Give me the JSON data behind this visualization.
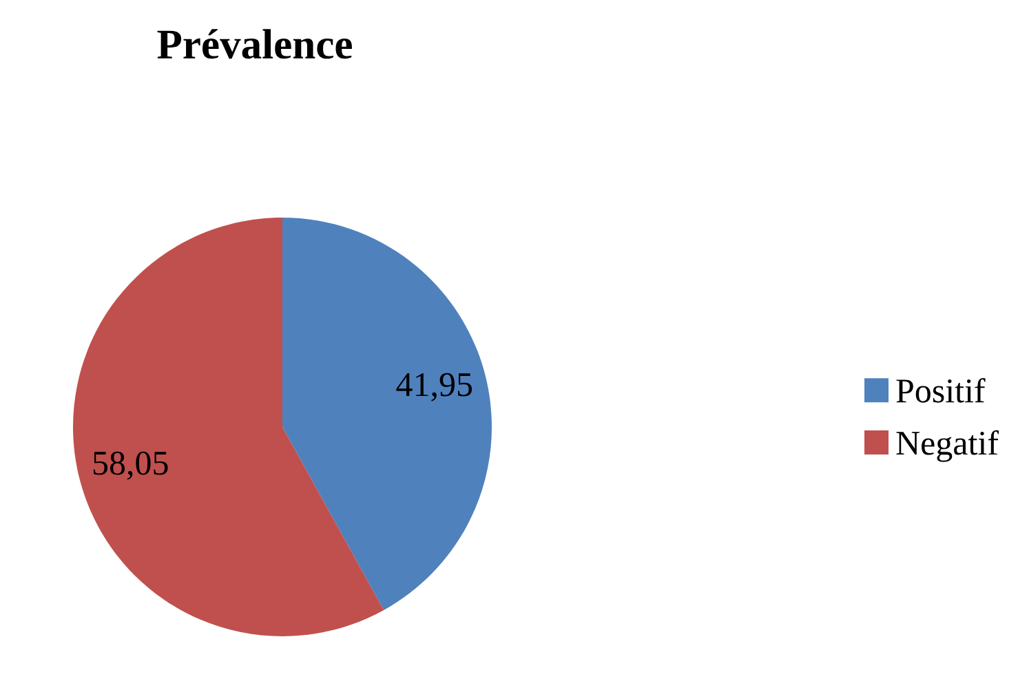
{
  "chart_data": {
    "type": "pie",
    "title": "Prévalence",
    "categories": [
      "Positif",
      "Negatif"
    ],
    "values": [
      41.95,
      58.05
    ],
    "value_labels": [
      "41,95",
      "58,05"
    ],
    "colors": [
      "#4f81bd",
      "#c0504d"
    ],
    "legend": "right"
  }
}
